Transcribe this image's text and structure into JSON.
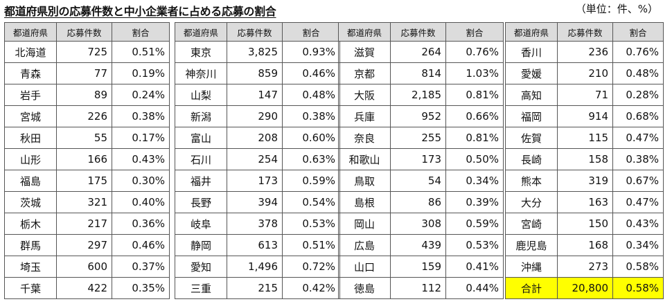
{
  "title": "都道府県別の応募件数と中小企業者に占める応募の割合",
  "unit": "（単位：件、%）",
  "headers": {
    "pref": "都道府県",
    "count": "応募件数",
    "ratio": "割合"
  },
  "tables": [
    {
      "rows": [
        {
          "name": "北海道",
          "count": "725",
          "ratio": "0.51%"
        },
        {
          "name": "青森",
          "count": "77",
          "ratio": "0.19%"
        },
        {
          "name": "岩手",
          "count": "89",
          "ratio": "0.24%"
        },
        {
          "name": "宮城",
          "count": "226",
          "ratio": "0.38%"
        },
        {
          "name": "秋田",
          "count": "55",
          "ratio": "0.17%"
        },
        {
          "name": "山形",
          "count": "166",
          "ratio": "0.43%"
        },
        {
          "name": "福島",
          "count": "175",
          "ratio": "0.30%"
        },
        {
          "name": "茨城",
          "count": "321",
          "ratio": "0.40%"
        },
        {
          "name": "栃木",
          "count": "217",
          "ratio": "0.36%"
        },
        {
          "name": "群馬",
          "count": "297",
          "ratio": "0.46%"
        },
        {
          "name": "埼玉",
          "count": "600",
          "ratio": "0.37%"
        },
        {
          "name": "千葉",
          "count": "422",
          "ratio": "0.35%"
        }
      ]
    },
    {
      "rows": [
        {
          "name": "東京",
          "count": "3,825",
          "ratio": "0.93%"
        },
        {
          "name": "神奈川",
          "count": "859",
          "ratio": "0.46%"
        },
        {
          "name": "山梨",
          "count": "147",
          "ratio": "0.48%"
        },
        {
          "name": "新潟",
          "count": "290",
          "ratio": "0.38%"
        },
        {
          "name": "富山",
          "count": "208",
          "ratio": "0.60%"
        },
        {
          "name": "石川",
          "count": "254",
          "ratio": "0.63%"
        },
        {
          "name": "福井",
          "count": "173",
          "ratio": "0.59%"
        },
        {
          "name": "長野",
          "count": "394",
          "ratio": "0.54%"
        },
        {
          "name": "岐阜",
          "count": "378",
          "ratio": "0.53%"
        },
        {
          "name": "静岡",
          "count": "613",
          "ratio": "0.51%"
        },
        {
          "name": "愛知",
          "count": "1,496",
          "ratio": "0.72%"
        },
        {
          "name": "三重",
          "count": "215",
          "ratio": "0.42%"
        }
      ]
    },
    {
      "rows": [
        {
          "name": "滋賀",
          "count": "264",
          "ratio": "0.76%"
        },
        {
          "name": "京都",
          "count": "814",
          "ratio": "1.03%"
        },
        {
          "name": "大阪",
          "count": "2,185",
          "ratio": "0.81%"
        },
        {
          "name": "兵庫",
          "count": "952",
          "ratio": "0.66%"
        },
        {
          "name": "奈良",
          "count": "255",
          "ratio": "0.81%"
        },
        {
          "name": "和歌山",
          "count": "173",
          "ratio": "0.50%"
        },
        {
          "name": "鳥取",
          "count": "54",
          "ratio": "0.34%"
        },
        {
          "name": "島根",
          "count": "86",
          "ratio": "0.39%"
        },
        {
          "name": "岡山",
          "count": "308",
          "ratio": "0.59%"
        },
        {
          "name": "広島",
          "count": "439",
          "ratio": "0.53%"
        },
        {
          "name": "山口",
          "count": "159",
          "ratio": "0.41%"
        },
        {
          "name": "徳島",
          "count": "112",
          "ratio": "0.44%"
        }
      ]
    },
    {
      "rows": [
        {
          "name": "香川",
          "count": "236",
          "ratio": "0.76%"
        },
        {
          "name": "愛媛",
          "count": "210",
          "ratio": "0.48%"
        },
        {
          "name": "高知",
          "count": "71",
          "ratio": "0.28%"
        },
        {
          "name": "福岡",
          "count": "914",
          "ratio": "0.68%"
        },
        {
          "name": "佐賀",
          "count": "115",
          "ratio": "0.47%"
        },
        {
          "name": "長崎",
          "count": "158",
          "ratio": "0.38%"
        },
        {
          "name": "熊本",
          "count": "319",
          "ratio": "0.67%"
        },
        {
          "name": "大分",
          "count": "163",
          "ratio": "0.47%"
        },
        {
          "name": "宮崎",
          "count": "150",
          "ratio": "0.43%"
        },
        {
          "name": "鹿児島",
          "count": "168",
          "ratio": "0.34%"
        },
        {
          "name": "沖縄",
          "count": "273",
          "ratio": "0.58%"
        },
        {
          "name": "合計",
          "count": "20,800",
          "ratio": "0.58%",
          "highlight": true
        }
      ]
    }
  ],
  "colors": {
    "header_bg": "#dcdcdc",
    "total_highlight": "#ffff00",
    "border": "#555555"
  }
}
